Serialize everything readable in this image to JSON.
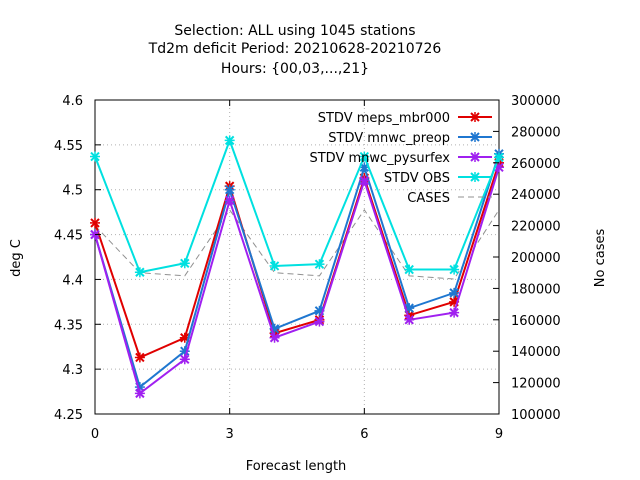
{
  "chart_data": {
    "type": "line",
    "title": [
      "Selection: ALL using  1045 stations",
      "Td2m deficit   Period: 20210628-20210726",
      "Hours: {00,03,...,21}"
    ],
    "xlabel": "Forecast length",
    "ylabel": "deg C",
    "y2label": "No cases",
    "xlim": [
      0,
      9
    ],
    "ylim": [
      4.25,
      4.6
    ],
    "y2lim": [
      100000,
      300000
    ],
    "xticks": [
      "0",
      "3",
      "6",
      "9"
    ],
    "yticks": [
      "4.25",
      "4.3",
      "4.35",
      "4.4",
      "4.45",
      "4.5",
      "4.55",
      "4.6"
    ],
    "y2ticks": [
      "100000",
      "120000",
      "140000",
      "160000",
      "180000",
      "200000",
      "220000",
      "240000",
      "260000",
      "280000",
      "300000"
    ],
    "grid": true,
    "legend_position": "top-right",
    "x": [
      0,
      1,
      2,
      3,
      4,
      5,
      6,
      7,
      8,
      9
    ],
    "series": [
      {
        "name": "STDV meps_mbr000",
        "axis": "left",
        "color": "#e00000",
        "marker": "x",
        "values": [
          4.463,
          4.313,
          4.335,
          4.504,
          4.34,
          4.355,
          4.513,
          4.36,
          4.375,
          4.53
        ]
      },
      {
        "name": "STDV mnwc_preop",
        "axis": "left",
        "color": "#1f77d0",
        "marker": "x",
        "values": [
          4.45,
          4.28,
          4.32,
          4.5,
          4.345,
          4.365,
          4.525,
          4.368,
          4.385,
          4.54
        ]
      },
      {
        "name": "STDV mnwc_pysurfex",
        "axis": "left",
        "color": "#a020f0",
        "marker": "x",
        "values": [
          4.45,
          4.273,
          4.311,
          4.488,
          4.335,
          4.353,
          4.51,
          4.355,
          4.363,
          4.525
        ]
      },
      {
        "name": "STDV OBS",
        "axis": "left",
        "color": "#00e0e0",
        "marker": "x",
        "values": [
          4.537,
          4.408,
          4.418,
          4.555,
          4.415,
          4.417,
          4.537,
          4.411,
          4.411,
          4.536
        ]
      },
      {
        "name": "CASES",
        "axis": "right",
        "color": "#909090",
        "marker": "none",
        "dashed": true,
        "values": [
          220000,
          190000,
          188000,
          230000,
          190000,
          188000,
          230000,
          188000,
          186000,
          230000
        ]
      }
    ]
  }
}
